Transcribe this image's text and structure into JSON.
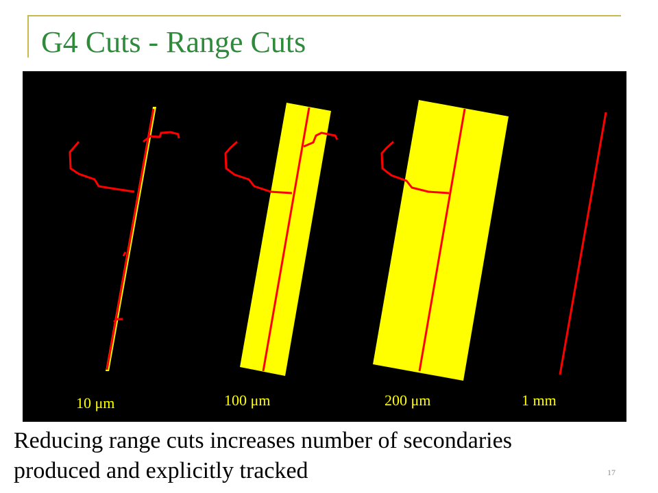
{
  "slide": {
    "title": "G4 Cuts - Range Cuts",
    "caption_lines": [
      "Reducing range cuts increases number of secondaries",
      "produced and explicitly tracked"
    ],
    "slide_number": "17"
  },
  "figure": {
    "background_color": "#000000",
    "material_color": "#ffff00",
    "track_color": "#ff0000",
    "panels": [
      {
        "label": "10 μm"
      },
      {
        "label": "100 μm"
      },
      {
        "label": "200 μm"
      },
      {
        "label": "1 mm"
      }
    ]
  },
  "theme": {
    "title_color": "#2f8a3c",
    "frame_color": "#c9b84a"
  }
}
